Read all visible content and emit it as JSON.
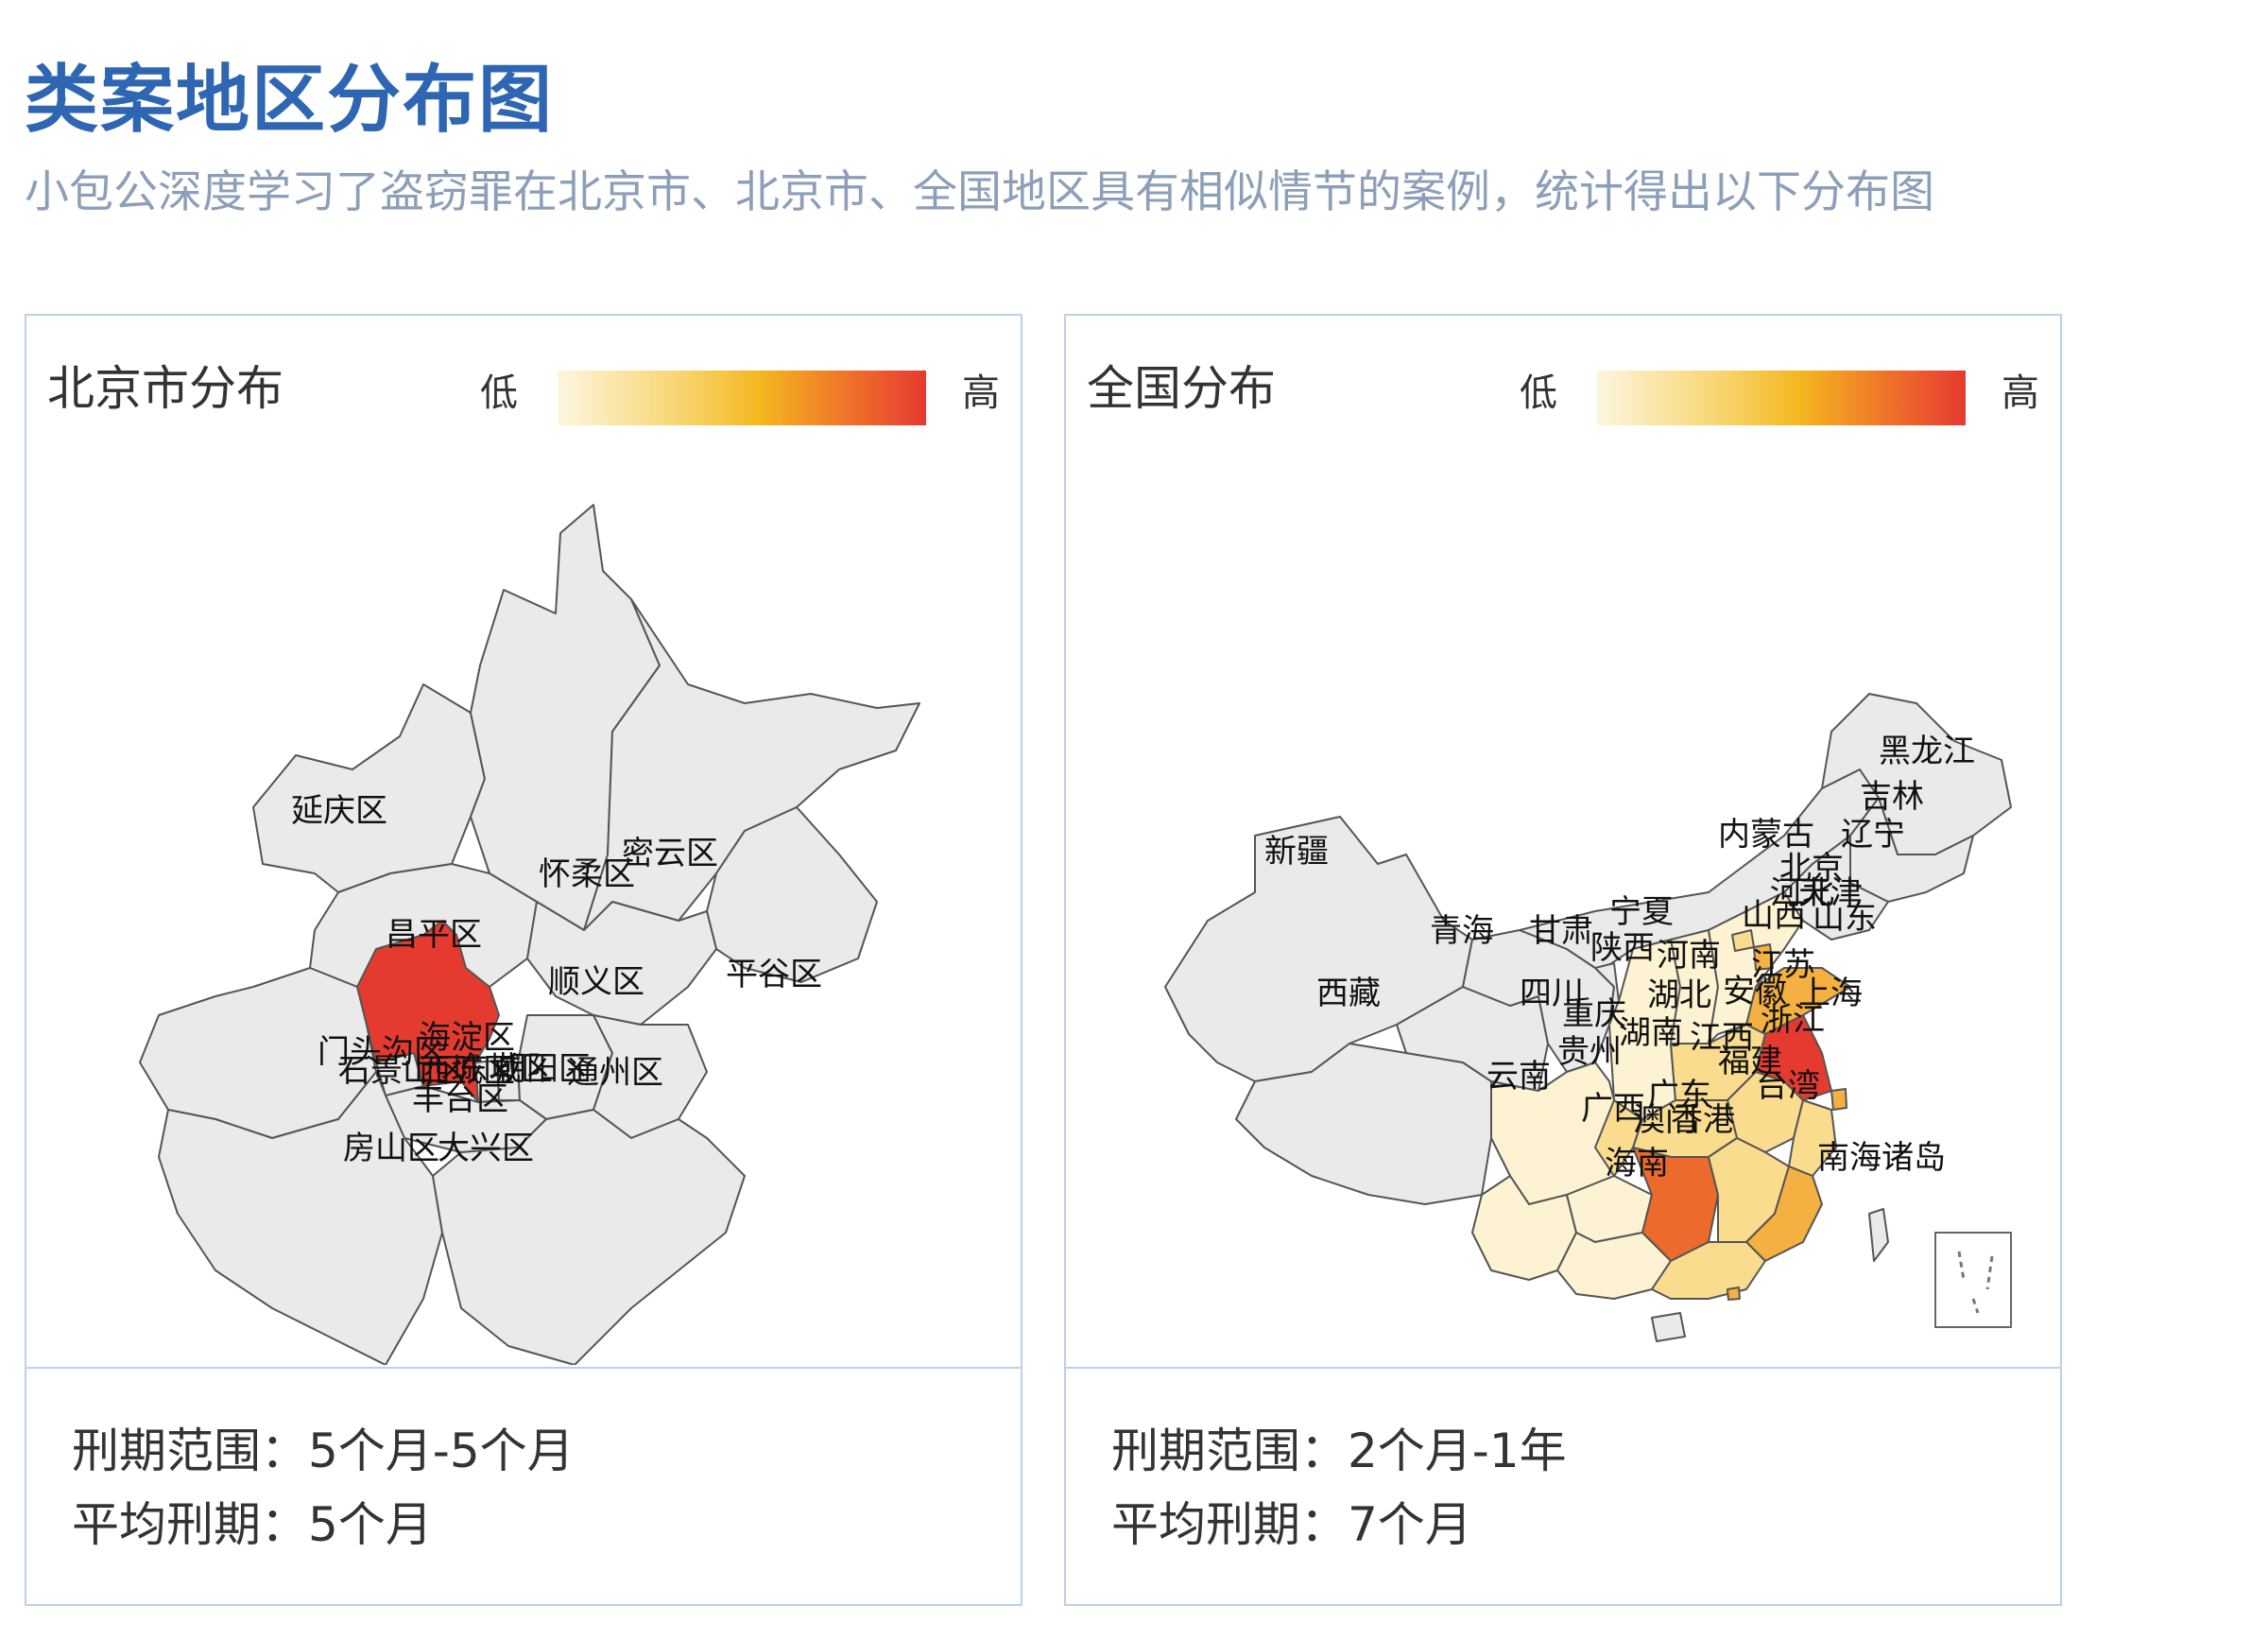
{
  "title": "类案地区分布图",
  "subtitle": "小包公深度学习了盗窃罪在北京市、北京市、全国地区具有相似情节的案例，统计得出以下分布图",
  "colors": {
    "accent": "#2f66b3",
    "region_default": "#eaeaea",
    "level_lowest": "#fdf3d2",
    "level_low": "#f9dc8e",
    "level_mid": "#f4b040",
    "level_high": "#ec6a2c",
    "level_highest": "#e53a30"
  },
  "beijing": {
    "title": "北京市分布",
    "legend_low": "低",
    "legend_high": "高",
    "labels": {
      "yanqing": "延庆区",
      "huairou": "怀柔区",
      "miyun": "密云区",
      "changping": "昌平区",
      "shunyi": "顺义区",
      "pinggu": "平谷区",
      "mentougou": "门头沟区",
      "haidian": "海淀区",
      "shijingshan": "石景山区",
      "xicheng": "西城区",
      "dongcheng": "东城区",
      "chaoyang": "朝阳区",
      "tongzhou": "通州区",
      "fengtai": "丰台区",
      "fangshan": "房山区",
      "daxing": "大兴区"
    },
    "stats": {
      "range_label": "刑期范围：",
      "range_value": "5个月-5个月",
      "avg_label": "平均刑期：",
      "avg_value": "5个月"
    }
  },
  "china": {
    "title": "全国分布",
    "legend_low": "低",
    "legend_high": "高",
    "labels": {
      "heilongjiang": "黑龙江",
      "jilin": "吉林",
      "liaoning": "辽宁",
      "neimenggu": "内蒙古",
      "beijing": "北京",
      "tianjin": "天津",
      "hebei": "河北",
      "shanxi": "山西",
      "shandong": "山东",
      "xinjiang": "新疆",
      "qinghai": "青海",
      "gansu": "甘肃",
      "ningxia": "宁夏",
      "shaanxi": "陕西",
      "henan": "河南",
      "jiangsu": "江苏",
      "shanghai": "上海",
      "anhui": "安徽",
      "hubei": "湖北",
      "sichuan": "四川",
      "chongqing": "重庆",
      "xizang": "西藏",
      "zhejiang": "浙江",
      "hunan": "湖南",
      "jiangxi": "江西",
      "guizhou": "贵州",
      "fujian": "福建",
      "yunnan": "云南",
      "guangxi": "广西",
      "guangdong": "广东",
      "taiwan": "台湾",
      "hongkong": "香港",
      "aomen": "澳门",
      "hainan": "海南",
      "nanhai": "南海诸岛"
    },
    "stats": {
      "range_label": "刑期范围：",
      "range_value": "2个月-1年",
      "avg_label": "平均刑期：",
      "avg_value": "7个月"
    }
  }
}
